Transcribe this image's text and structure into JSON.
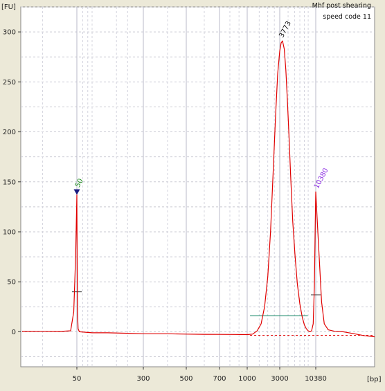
{
  "chart_data": {
    "type": "line",
    "title_lines": [
      "Mhf post shearing",
      "speed code 11"
    ],
    "ylabel": "[FU]",
    "xlabel": "[bp]",
    "ylim": [
      -35,
      325
    ],
    "yticks": [
      0,
      50,
      100,
      150,
      200,
      250,
      300
    ],
    "xticks": [
      {
        "label": "50",
        "value": 50
      },
      {
        "label": "300",
        "value": 300
      },
      {
        "label": "500",
        "value": 500
      },
      {
        "label": "700",
        "value": 700
      },
      {
        "label": "1000",
        "value": 1000
      },
      {
        "label": "3000",
        "value": 3000
      },
      {
        "label": "10380",
        "value": 10380
      }
    ],
    "series": [
      {
        "color": "#e00000",
        "points": [
          [
            35,
            0.6
          ],
          [
            40,
            0.5
          ],
          [
            45,
            0.4
          ],
          [
            48,
            1
          ],
          [
            49,
            20
          ],
          [
            49.6,
            75
          ],
          [
            50,
            137
          ],
          [
            50.4,
            75
          ],
          [
            51,
            20
          ],
          [
            52,
            3
          ],
          [
            54,
            0
          ],
          [
            80,
            -1
          ],
          [
            120,
            -1
          ],
          [
            200,
            -1.5
          ],
          [
            300,
            -2
          ],
          [
            400,
            -2
          ],
          [
            500,
            -2.3
          ],
          [
            600,
            -2.5
          ],
          [
            700,
            -2.6
          ],
          [
            850,
            -2.7
          ],
          [
            1000,
            -2.8
          ],
          [
            1200,
            -2.3
          ],
          [
            1400,
            1
          ],
          [
            1600,
            8
          ],
          [
            1800,
            25
          ],
          [
            2000,
            55
          ],
          [
            2200,
            100
          ],
          [
            2400,
            160
          ],
          [
            2600,
            215
          ],
          [
            2800,
            258
          ],
          [
            3000,
            281
          ],
          [
            3150,
            289
          ],
          [
            3300,
            291
          ],
          [
            3500,
            283
          ],
          [
            3700,
            262
          ],
          [
            3900,
            232
          ],
          [
            4100,
            200
          ],
          [
            4400,
            152
          ],
          [
            4700,
            110
          ],
          [
            5100,
            75
          ],
          [
            5500,
            48
          ],
          [
            6000,
            28
          ],
          [
            6500,
            15
          ],
          [
            7000,
            7
          ],
          [
            7500,
            3
          ],
          [
            8000,
            1
          ],
          [
            8500,
            0
          ],
          [
            9000,
            1
          ],
          [
            9500,
            8
          ],
          [
            9900,
            45
          ],
          [
            10200,
            110
          ],
          [
            10380,
            140
          ],
          [
            10550,
            95
          ],
          [
            10800,
            30
          ],
          [
            11000,
            8
          ],
          [
            11300,
            2
          ],
          [
            11800,
            0.5
          ],
          [
            12500,
            0
          ],
          [
            13500,
            -2
          ],
          [
            14500,
            -4
          ],
          [
            15500,
            -5
          ]
        ]
      }
    ],
    "peaks": [
      {
        "label": "50",
        "x": 50,
        "y": 137,
        "color": "#1a8a1a",
        "marker": "down-triangle",
        "marker_color": "#1a1a80"
      },
      {
        "label": "3773",
        "x": 3100,
        "y": 291,
        "color": "#111111"
      },
      {
        "label": "10380",
        "x": 10380,
        "y": 140,
        "color": "#8a2be2"
      }
    ],
    "region_line": {
      "x_start": 1100,
      "x_end": 7900,
      "y": 16,
      "color": "#1a8a6a"
    },
    "baseline": {
      "x_start": 1100,
      "x_end": 15500,
      "y": -3.5,
      "color": "#e00000",
      "style": "dashed"
    },
    "short_markers": [
      {
        "x": 50,
        "y": 40
      },
      {
        "x": 10380,
        "y": 37
      }
    ],
    "grid": true
  }
}
